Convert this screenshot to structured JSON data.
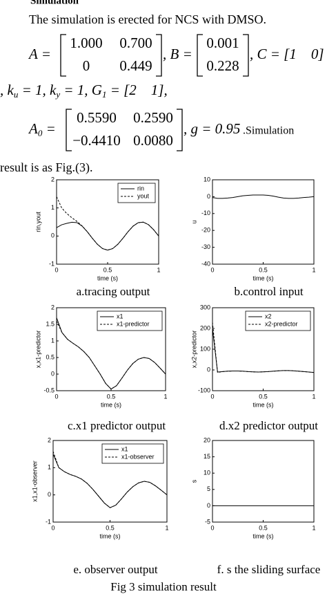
{
  "text": {
    "heading": "Simulation",
    "intro": "The simulation is erected for NCS with DMSO.",
    "eq1": {
      "A_label": "A =",
      "A": [
        [
          "1.000",
          "0.700"
        ],
        [
          "0",
          "0.449"
        ]
      ],
      "B_label": ", B =",
      "B": [
        [
          "0.001"
        ],
        [
          "0.228"
        ]
      ],
      "C_label": ", C = [1    0]"
    },
    "eq2": [
      ", ",
      "k",
      "u",
      " = 1, ",
      "k",
      "y",
      " = 1, ",
      "G",
      "1",
      " = [2    1],"
    ],
    "eq3": {
      "A_label": "A",
      "A_sub": "0",
      "eq": " =",
      "A": [
        [
          "0.5590",
          "0.2590"
        ],
        [
          "−0.4410",
          "0.0080"
        ]
      ],
      "g": ", g = 0.95",
      "tail": ".Simulation"
    },
    "closing": "result is as Fig.(3).",
    "figure_caption": "Fig 3 simulation result"
  },
  "chart_data": [
    {
      "type": "line",
      "caption": "a.tracing output",
      "xlabel": "time (s)",
      "ylabel": "rin,yout",
      "x": [
        0,
        0.05,
        0.1,
        0.15,
        0.2,
        0.25,
        0.3,
        0.35,
        0.4,
        0.45,
        0.5,
        0.55,
        0.6,
        0.65,
        0.7,
        0.75,
        0.8,
        0.85,
        0.9,
        0.95,
        1
      ],
      "xlim": [
        0,
        1
      ],
      "xticks": [
        0,
        0.5,
        1
      ],
      "ylim": [
        -1,
        2
      ],
      "yticks": [
        -1,
        0,
        1,
        2
      ],
      "legend": "upper right",
      "series": [
        {
          "name": "rin",
          "color": "#000000",
          "linestyle": "solid",
          "values": [
            0.3,
            0.4,
            0.45,
            0.49,
            0.476,
            0.354,
            0.155,
            -0.078,
            -0.294,
            -0.446,
            -0.5,
            -0.446,
            -0.294,
            -0.078,
            0.155,
            0.354,
            0.476,
            0.494,
            0.405,
            0.227,
            0
          ]
        },
        {
          "name": "yout",
          "color": "#000000",
          "linestyle": "dashed",
          "values": [
            1.4,
            1.0,
            0.8,
            0.65,
            0.52,
            0.36,
            0.16,
            -0.078,
            -0.294,
            -0.446,
            -0.5,
            -0.446,
            -0.294,
            -0.078,
            0.155,
            0.354,
            0.476,
            0.494,
            0.405,
            0.227,
            0
          ]
        }
      ]
    },
    {
      "type": "line",
      "caption": "b.control input",
      "xlabel": "time (s)",
      "ylabel": "u",
      "x": [
        0,
        0.05,
        0.1,
        0.15,
        0.2,
        0.25,
        0.3,
        0.35,
        0.4,
        0.45,
        0.5,
        0.55,
        0.6,
        0.65,
        0.7,
        0.75,
        0.8,
        0.85,
        0.9,
        0.95,
        1
      ],
      "xlim": [
        0,
        1
      ],
      "xticks": [
        0,
        0.5,
        1
      ],
      "ylim": [
        -40,
        10
      ],
      "yticks": [
        -40,
        -30,
        -20,
        -10,
        0,
        10
      ],
      "series": [
        {
          "color": "#000000",
          "linestyle": "solid",
          "values": [
            -0.5,
            -1,
            -1,
            -0.8,
            -0.5,
            0,
            0.5,
            0.8,
            1,
            1,
            1,
            0.8,
            0.3,
            -0.3,
            -0.8,
            -1,
            -1,
            -0.8,
            -0.5,
            -0.3,
            0
          ]
        }
      ]
    },
    {
      "type": "line",
      "caption": "c.x1 predictor output",
      "xlabel": "time (s)",
      "ylabel": "x,x1-predictor",
      "x": [
        0,
        0.05,
        0.1,
        0.15,
        0.2,
        0.25,
        0.3,
        0.35,
        0.4,
        0.45,
        0.5,
        0.55,
        0.6,
        0.65,
        0.7,
        0.75,
        0.8,
        0.85,
        0.9,
        0.95,
        1
      ],
      "xlim": [
        0,
        1
      ],
      "xticks": [
        0,
        0.5,
        1
      ],
      "ylim": [
        -0.5,
        2
      ],
      "yticks": [
        -0.5,
        0,
        0.5,
        1,
        1.5,
        2
      ],
      "legend": "upper right",
      "series": [
        {
          "name": "x1",
          "color": "#000000",
          "linestyle": "solid",
          "values": [
            1.7,
            1.25,
            1.05,
            0.93,
            0.82,
            0.68,
            0.5,
            0.25,
            0,
            -0.28,
            -0.45,
            -0.35,
            -0.12,
            0.12,
            0.32,
            0.45,
            0.5,
            0.47,
            0.35,
            0.18,
            0
          ]
        },
        {
          "name": "x1-predictor",
          "color": "#000000",
          "linestyle": "dashed",
          "values": [
            1.6,
            1.25,
            1.05,
            0.93,
            0.82,
            0.68,
            0.5,
            0.25,
            0,
            -0.28,
            -0.45,
            -0.35,
            -0.12,
            0.12,
            0.32,
            0.45,
            0.5,
            0.47,
            0.35,
            0.18,
            0
          ]
        }
      ]
    },
    {
      "type": "line",
      "caption": "d.x2 predictor output",
      "xlabel": "time (s)",
      "ylabel": "x,x2-predictor",
      "x": [
        0,
        0.05,
        0.1,
        0.15,
        0.2,
        0.25,
        0.3,
        0.35,
        0.4,
        0.45,
        0.5,
        0.55,
        0.6,
        0.65,
        0.7,
        0.75,
        0.8,
        0.85,
        0.9,
        0.95,
        1
      ],
      "xlim": [
        0,
        1
      ],
      "xticks": [
        0,
        0.5,
        1
      ],
      "ylim": [
        -100,
        300
      ],
      "yticks": [
        -100,
        0,
        100,
        200,
        300
      ],
      "legend": "upper right",
      "series": [
        {
          "name": "x2",
          "color": "#000000",
          "linestyle": "solid",
          "values": [
            200,
            -10,
            -8,
            -6,
            -5,
            -5,
            -6,
            -8,
            -9,
            -10,
            -9,
            -8,
            -6,
            -4,
            -3,
            -3,
            -4,
            -6,
            -8,
            -10,
            -12
          ]
        },
        {
          "name": "x2-predictor",
          "color": "#000000",
          "linestyle": "dashed",
          "values": [
            230,
            -12,
            -8,
            -6,
            -5,
            -5,
            -6,
            -8,
            -9,
            -10,
            -9,
            -8,
            -6,
            -4,
            -3,
            -3,
            -4,
            -6,
            -8,
            -10,
            -12
          ]
        }
      ]
    },
    {
      "type": "line",
      "caption": "e. observer  output",
      "xlabel": "time  (s)",
      "ylabel": "x1,x1-observer",
      "x": [
        0,
        0.05,
        0.1,
        0.15,
        0.2,
        0.25,
        0.3,
        0.35,
        0.4,
        0.45,
        0.5,
        0.55,
        0.6,
        0.65,
        0.7,
        0.75,
        0.8,
        0.85,
        0.9,
        0.95,
        1
      ],
      "xlim": [
        0,
        1
      ],
      "xticks": [
        0,
        0.5,
        1
      ],
      "ylim": [
        -1,
        2
      ],
      "yticks": [
        -1,
        0,
        1,
        2
      ],
      "legend": "upper right",
      "series": [
        {
          "name": "x1",
          "color": "#000000",
          "linestyle": "solid",
          "values": [
            1.5,
            1.0,
            0.85,
            0.75,
            0.68,
            0.58,
            0.42,
            0.2,
            -0.05,
            -0.3,
            -0.47,
            -0.38,
            -0.15,
            0.1,
            0.3,
            0.44,
            0.5,
            0.46,
            0.33,
            0.17,
            0
          ]
        },
        {
          "name": "x1-observer",
          "color": "#000000",
          "linestyle": "dashed",
          "values": [
            1.6,
            1.0,
            0.85,
            0.75,
            0.68,
            0.58,
            0.42,
            0.2,
            -0.05,
            -0.3,
            -0.47,
            -0.38,
            -0.15,
            0.1,
            0.3,
            0.44,
            0.5,
            0.46,
            0.33,
            0.17,
            0
          ]
        }
      ]
    },
    {
      "type": "line",
      "caption": "f. s the sliding surface",
      "xlabel": "time (s)",
      "ylabel": "s",
      "x": [
        0,
        0.05,
        0.1,
        0.15,
        0.2,
        0.25,
        0.3,
        0.35,
        0.4,
        0.45,
        0.5,
        0.55,
        0.6,
        0.65,
        0.7,
        0.75,
        0.8,
        0.85,
        0.9,
        0.95,
        1
      ],
      "xlim": [
        0,
        1
      ],
      "xticks": [
        0,
        0.5,
        1
      ],
      "ylim": [
        -5,
        20
      ],
      "yticks": [
        -5,
        0,
        5,
        10,
        15,
        20
      ],
      "series": [
        {
          "color": "#000000",
          "linestyle": "solid",
          "values": [
            0,
            0,
            0,
            0,
            0,
            0,
            0,
            0,
            0,
            0,
            0,
            0,
            0,
            0,
            0,
            0,
            0,
            0,
            0,
            0,
            0
          ]
        }
      ]
    }
  ]
}
